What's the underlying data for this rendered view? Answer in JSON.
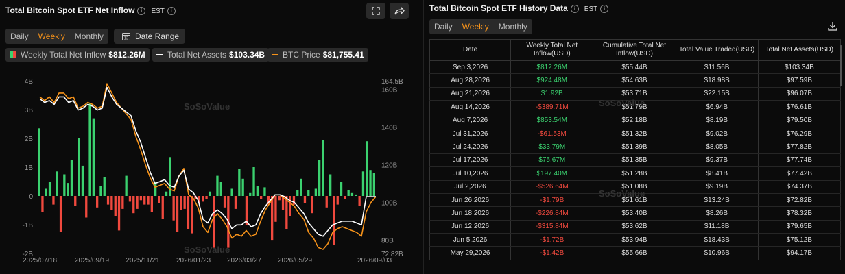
{
  "left": {
    "title": "Total Bitcoin Spot ETF Net Inflow",
    "timezone": "EST",
    "periods": [
      "Daily",
      "Weekly",
      "Monthly"
    ],
    "active_period": "Weekly",
    "date_range_label": "Date Range",
    "icons": [
      "expand-icon",
      "share-icon",
      "calendar-icon",
      "info-icon"
    ],
    "legend": [
      {
        "label": "Weekly Total Net Inflow",
        "value": "$812.26M",
        "color": "#f0493e"
      },
      {
        "label": "Total Net Assets",
        "value": "$103.34B",
        "color": "#ffffff"
      },
      {
        "label": "BTC Price",
        "value": "$81,755.41",
        "color": "#f7931a"
      }
    ],
    "watermark": "SoSoValue"
  },
  "right": {
    "title": "Total Bitcoin Spot ETF History Data",
    "timezone": "EST",
    "periods": [
      "Daily",
      "Weekly",
      "Monthly"
    ],
    "active_period": "Weekly",
    "headers": [
      "Date",
      "Weekly Total Net Inflow(USD)",
      "Cumulative Total Net Inflow(USD)",
      "Total Value Traded(USD)",
      "Total Net Assets(USD)"
    ],
    "rows": [
      [
        "Sep 3,2026",
        "$812.26M",
        "$55.44B",
        "$11.56B",
        "$103.34B"
      ],
      [
        "Aug 28,2026",
        "$924.48M",
        "$54.63B",
        "$18.98B",
        "$97.59B"
      ],
      [
        "Aug 21,2026",
        "$1.92B",
        "$53.71B",
        "$22.15B",
        "$96.07B"
      ],
      [
        "Aug 14,2026",
        "-$389.71M",
        "$51.79B",
        "$6.94B",
        "$76.61B"
      ],
      [
        "Aug 7,2026",
        "$853.54M",
        "$52.18B",
        "$8.19B",
        "$79.50B"
      ],
      [
        "Jul 31,2026",
        "-$61.53M",
        "$51.32B",
        "$9.02B",
        "$76.29B"
      ],
      [
        "Jul 24,2026",
        "$33.79M",
        "$51.39B",
        "$8.05B",
        "$77.82B"
      ],
      [
        "Jul 17,2026",
        "$75.67M",
        "$51.35B",
        "$9.37B",
        "$77.74B"
      ],
      [
        "Jul 10,2026",
        "$197.40M",
        "$51.28B",
        "$8.41B",
        "$77.42B"
      ],
      [
        "Jul 2,2026",
        "-$526.64M",
        "$51.08B",
        "$9.19B",
        "$74.37B"
      ],
      [
        "Jun 26,2026",
        "-$1.79B",
        "$51.61B",
        "$13.24B",
        "$72.82B"
      ],
      [
        "Jun 18,2026",
        "-$226.84M",
        "$53.40B",
        "$8.26B",
        "$78.32B"
      ],
      [
        "Jun 12,2026",
        "-$315.84M",
        "$53.62B",
        "$11.18B",
        "$79.65B"
      ],
      [
        "Jun 5,2026",
        "-$1.72B",
        "$53.94B",
        "$18.43B",
        "$75.12B"
      ],
      [
        "May 29,2026",
        "-$1.42B",
        "$55.66B",
        "$10.96B",
        "$94.17B"
      ]
    ],
    "watermark": "SoSoValue"
  },
  "chart_data": {
    "type": "bar",
    "x_ticks": [
      "2025/07/18",
      "2025/09/19",
      "2025/11/21",
      "2026/01/23",
      "2026/03/27",
      "2026/05/29",
      "2026/09/03"
    ],
    "y_left_ticks": [
      "4B",
      "3B",
      "2B",
      "1B",
      "0",
      "-1B",
      "-2B"
    ],
    "y_left_range": [
      -2,
      4
    ],
    "y_right_ticks": [
      "164.5B",
      "160B",
      "140B",
      "120B",
      "100B",
      "80B",
      "72.82B"
    ],
    "y_right_range": [
      72.82,
      164.5
    ],
    "colors": {
      "positive": "#3bd16f",
      "negative": "#f0493e",
      "assets": "#ffffff",
      "btc": "#f7931a"
    },
    "series": [
      {
        "name": "Weekly Total Net Inflow",
        "unit": "B",
        "values": [
          2.35,
          -0.55,
          0.25,
          0.5,
          -0.3,
          0.85,
          -1.25,
          0.75,
          0.45,
          1.25,
          -0.35,
          2.0,
          1.05,
          -0.75,
          3.2,
          2.7,
          -0.4,
          0.35,
          0.65,
          -0.3,
          -0.5,
          -0.7,
          -1.2,
          -0.45,
          0.7,
          -0.2,
          -0.6,
          -0.45,
          -0.15,
          -0.3,
          -0.3,
          -0.55,
          0.5,
          -0.25,
          -0.8,
          0.15,
          1.35,
          -0.85,
          -1.25,
          -0.5,
          -0.45,
          -1.15,
          -1.3,
          -0.1,
          -0.25,
          -0.2,
          -0.1,
          0.15,
          -1.8,
          0.7,
          0.5,
          -0.4,
          -1.8,
          0.25,
          -0.45,
          0.95,
          0.6,
          -1.0,
          0.1,
          1.0,
          0.35,
          -0.1,
          0.3,
          -0.3,
          -1.55,
          -0.9,
          -0.15,
          -0.5,
          -1.15,
          -0.7,
          -0.3,
          0.2,
          0.6,
          -0.25,
          0.2,
          -0.6,
          0.25,
          1.25,
          1.95,
          -0.4,
          0.75,
          -1.7,
          -0.3,
          0.5,
          -0.1,
          0.2,
          0.1,
          0.05,
          -0.35,
          0.85,
          1.9,
          0.9,
          0.8
        ]
      },
      {
        "name": "Total Net Assets",
        "unit": "B",
        "values": [
          155,
          153,
          154,
          152,
          156,
          156,
          153,
          154,
          149,
          150,
          152,
          151,
          149,
          150,
          161,
          156,
          152,
          150,
          148,
          146,
          138,
          132,
          124,
          116,
          110,
          111,
          112,
          109,
          108,
          114,
          117,
          107,
          105,
          101,
          91,
          89,
          94,
          96,
          94,
          91,
          86,
          88,
          88,
          90,
          87,
          88,
          94,
          98,
          101,
          104,
          104,
          103,
          101,
          100,
          97,
          94,
          89,
          86,
          83,
          82,
          85,
          88,
          89,
          90,
          90,
          90,
          89,
          88,
          103,
          103,
          103
        ]
      },
      {
        "name": "BTC Price",
        "unit": "B-axis",
        "values": [
          156,
          154,
          156,
          153,
          158,
          158,
          155,
          156,
          150,
          151,
          153,
          152,
          150,
          151,
          163,
          158,
          153,
          150,
          147,
          144,
          135,
          128,
          120,
          113,
          108,
          109,
          110,
          107,
          106,
          114,
          118,
          104,
          102,
          97,
          87,
          84,
          91,
          94,
          91,
          87,
          81,
          83,
          82,
          85,
          82,
          83,
          90,
          96,
          100,
          104,
          104,
          102,
          100,
          98,
          94,
          91,
          84,
          81,
          76,
          75,
          78,
          84,
          86,
          87,
          86,
          85,
          84,
          82,
          95,
          100,
          103
        ]
      }
    ]
  }
}
